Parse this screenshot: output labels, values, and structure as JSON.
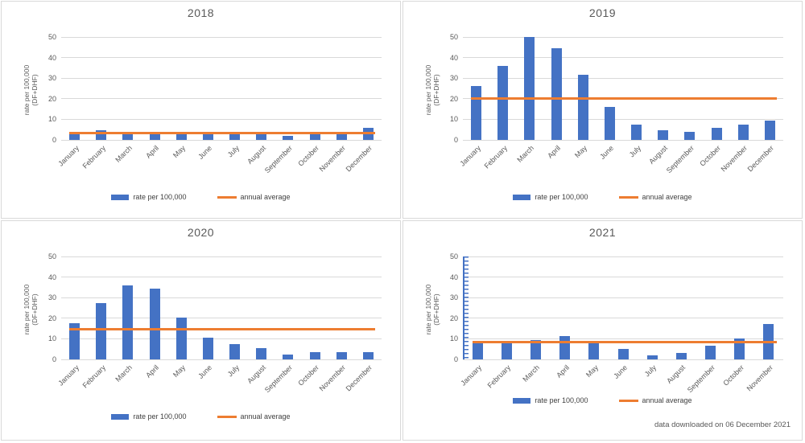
{
  "colors": {
    "bar": "#4472C4",
    "annual_average_line": "#ED7D31",
    "gridline": "#D9D9D9",
    "text": "#595959",
    "panel_border": "#D9D9D9"
  },
  "legend": {
    "bar_label": "rate per 100,000",
    "line_label": "annual average"
  },
  "y_axis": {
    "label_line1": "rate per 100,000",
    "label_line2": "(DF+DHF)",
    "ticks": [
      0,
      10,
      20,
      30,
      40,
      50
    ],
    "max": 50
  },
  "footnote": "data downloaded on 06 December 2021",
  "chart_data": [
    {
      "type": "bar",
      "title": "2018",
      "categories": [
        "January",
        "February",
        "March",
        "April",
        "May",
        "June",
        "July",
        "August",
        "September",
        "October",
        "November",
        "December"
      ],
      "series": [
        {
          "name": "rate per 100,000",
          "values": [
            3.5,
            4.5,
            3,
            3,
            3,
            3,
            3,
            3,
            2,
            3,
            3,
            6
          ]
        }
      ],
      "annual_average": 3.5,
      "ylabel": "rate per 100,000 (DF+DHF)",
      "ylim": [
        0,
        50
      ],
      "grid": true,
      "legend_position": "bottom",
      "highlighted_y_axis": false
    },
    {
      "type": "bar",
      "title": "2019",
      "categories": [
        "January",
        "February",
        "March",
        "April",
        "May",
        "June",
        "July",
        "August",
        "September",
        "October",
        "November",
        "December"
      ],
      "series": [
        {
          "name": "rate per 100,000",
          "values": [
            26,
            36,
            50,
            44.5,
            31.5,
            16,
            7.5,
            4.5,
            4,
            6,
            7.5,
            9.5
          ]
        }
      ],
      "annual_average": 20,
      "ylabel": "rate per 100,000 (DF+DHF)",
      "ylim": [
        0,
        50
      ],
      "grid": true,
      "legend_position": "bottom",
      "highlighted_y_axis": false
    },
    {
      "type": "bar",
      "title": "2020",
      "categories": [
        "January",
        "February",
        "March",
        "April",
        "May",
        "June",
        "July",
        "August",
        "September",
        "October",
        "November",
        "December"
      ],
      "series": [
        {
          "name": "rate per 100,000",
          "values": [
            17.5,
            27.5,
            36,
            34.5,
            20.5,
            10.5,
            7.5,
            5.5,
            2.5,
            3.5,
            3.5,
            3.5
          ]
        }
      ],
      "annual_average": 14.5,
      "ylabel": "rate per 100,000 (DF+DHF)",
      "ylim": [
        0,
        50
      ],
      "grid": true,
      "legend_position": "bottom",
      "highlighted_y_axis": false
    },
    {
      "type": "bar",
      "title": "2021",
      "categories": [
        "January",
        "February",
        "March",
        "April",
        "May",
        "June",
        "July",
        "August",
        "September",
        "October",
        "November"
      ],
      "series": [
        {
          "name": "rate per 100,000",
          "values": [
            8.5,
            8,
            9.5,
            11.5,
            8,
            5,
            2,
            3,
            6.5,
            10,
            17
          ]
        }
      ],
      "annual_average": 8.5,
      "ylabel": "rate per 100,000 (DF+DHF)",
      "ylim": [
        0,
        50
      ],
      "grid": true,
      "legend_position": "bottom",
      "highlighted_y_axis": true,
      "show_footnote": true
    }
  ]
}
